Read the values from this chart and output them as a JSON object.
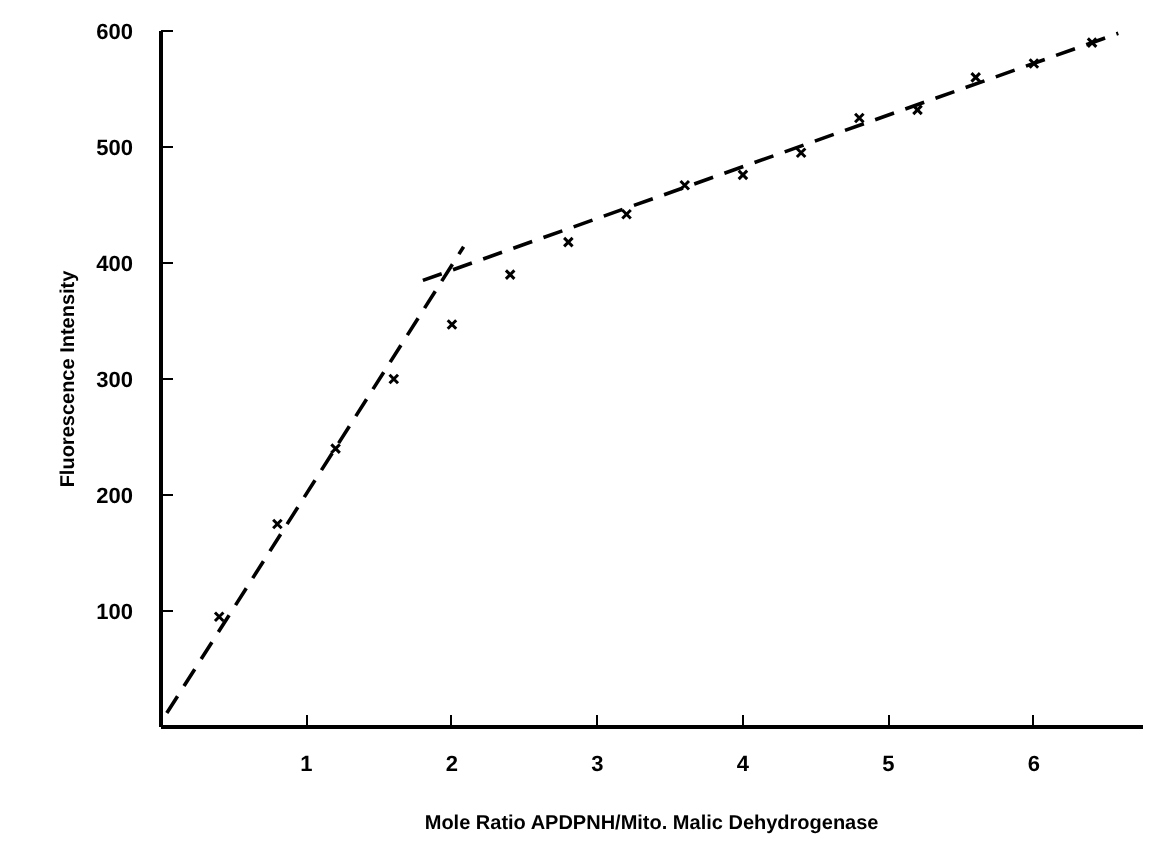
{
  "chart_data": {
    "type": "scatter",
    "xlabel": "Mole Ratio APDPNH/Mito. Malic Dehydrogenase",
    "ylabel": "Fluorescence Intensity",
    "xlim": [
      0,
      6.75
    ],
    "ylim": [
      0,
      600
    ],
    "xticks": [
      1,
      2,
      3,
      4,
      5,
      6
    ],
    "yticks": [
      100,
      200,
      300,
      400,
      500,
      600
    ],
    "grid": false,
    "series": [
      {
        "marker": "cross",
        "color": "#000000",
        "x": [
          0.4,
          0.8,
          1.2,
          1.6,
          2.0,
          2.4,
          2.8,
          3.2,
          3.6,
          4.0,
          4.4,
          4.8,
          5.2,
          5.6,
          6.0,
          6.4
        ],
        "values": [
          95,
          175,
          240,
          300,
          347,
          390,
          418,
          442,
          467,
          476,
          495,
          525,
          532,
          560,
          572,
          590
        ]
      },
      {
        "type": "line",
        "line_style": "dashed",
        "color": "#000000",
        "x": [
          0.04,
          2.08
        ],
        "values": [
          12,
          414
        ]
      },
      {
        "type": "line",
        "line_style": "dashed",
        "color": "#000000",
        "x": [
          1.8,
          6.58
        ],
        "values": [
          385,
          598
        ]
      }
    ]
  }
}
